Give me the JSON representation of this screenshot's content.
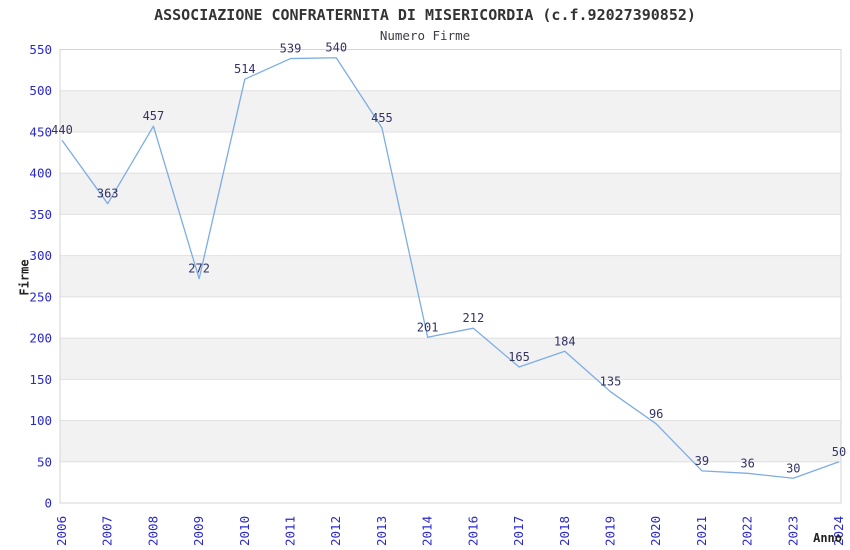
{
  "chart_data": {
    "type": "line",
    "title": "ASSOCIAZIONE CONFRATERNITA DI MISERICORDIA (c.f.92027390852)",
    "subtitle": "Numero Firme",
    "xlabel": "Anno",
    "ylabel": "Firme",
    "categories": [
      "2006",
      "2007",
      "2008",
      "2009",
      "2010",
      "2011",
      "2012",
      "2013",
      "2014",
      "2016",
      "2017",
      "2018",
      "2019",
      "2020",
      "2021",
      "2022",
      "2023",
      "2024"
    ],
    "values": [
      440,
      363,
      457,
      272,
      514,
      539,
      540,
      455,
      201,
      212,
      165,
      184,
      135,
      96,
      39,
      36,
      30,
      50
    ],
    "ylim": [
      0,
      550
    ],
    "ytick_step": 50,
    "grid": true,
    "legend": "none",
    "colors": {
      "line": "#7DADE4",
      "data_label": "#333366",
      "tick_label": "#2929CC",
      "band_fill": "#F2F2F2",
      "gridline": "#E0E0E0",
      "plot_border": "#D5D5D5",
      "title": "#333333",
      "subtitle": "#3C3C46",
      "axis_title": "#222222",
      "background": "#FFFFFF"
    }
  }
}
